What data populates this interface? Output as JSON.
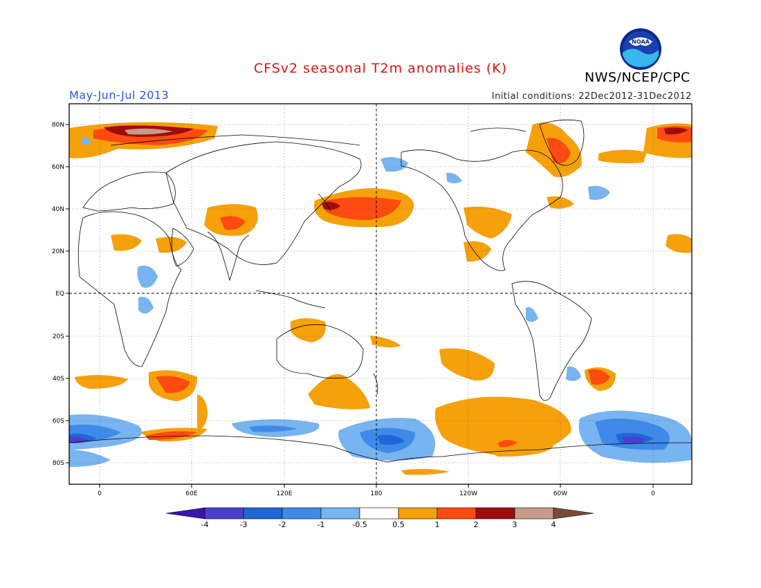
{
  "header": {
    "title": "CFSv2 seasonal T2m anomalies (K)",
    "season": "May-Jun-Jul 2013",
    "initial_conditions": "Initial conditions: 22Dec2012-31Dec2012",
    "agency": "NWS/NCEP/CPC",
    "logo_text": "NOAA"
  },
  "axes": {
    "lon_labels": [
      "0",
      "60E",
      "120E",
      "180",
      "120W",
      "60W",
      "0"
    ],
    "lat_labels": [
      "80N",
      "60N",
      "40N",
      "20N",
      "EQ",
      "20S",
      "40S",
      "60S",
      "80S"
    ]
  },
  "colorbar": {
    "labels": [
      "-4",
      "-3",
      "-2",
      "-1",
      "-0.5",
      "0.5",
      "1",
      "2",
      "3",
      "4"
    ],
    "colors": [
      "#3a16a8",
      "#4a3fd0",
      "#1f66d6",
      "#3f8ae8",
      "#78b4f0",
      "#ffffff",
      "#f6a00a",
      "#ff4a10",
      "#a10d0d",
      "#c49c8a",
      "#7a4a38"
    ]
  }
}
